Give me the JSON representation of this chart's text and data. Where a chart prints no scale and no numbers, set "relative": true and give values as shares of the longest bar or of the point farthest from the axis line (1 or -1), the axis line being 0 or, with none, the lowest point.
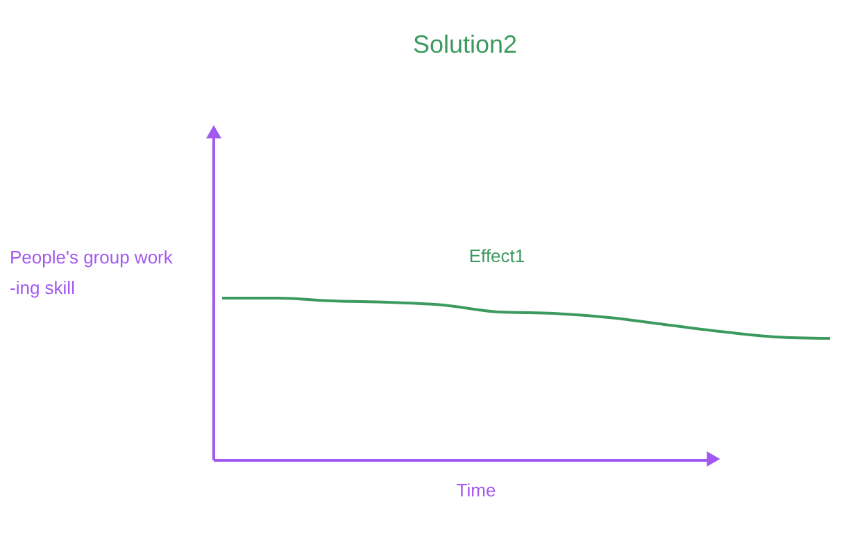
{
  "chart_data": {
    "type": "line",
    "title": "Solution2",
    "xlabel": "Time",
    "ylabel": "People's group work\n-ing skill",
    "relative": true,
    "categories": [
      null,
      null,
      null,
      null,
      null,
      null,
      null,
      null,
      null,
      null,
      null,
      null
    ],
    "series": [
      {
        "name": "Effect1",
        "color": "#3c9a5f",
        "values": [
          1,
          1,
          0.983,
          0.974,
          0.957,
          0.915,
          0.906,
          0.88,
          0.838,
          0.795,
          0.761,
          0.752
        ]
      }
    ]
  }
}
